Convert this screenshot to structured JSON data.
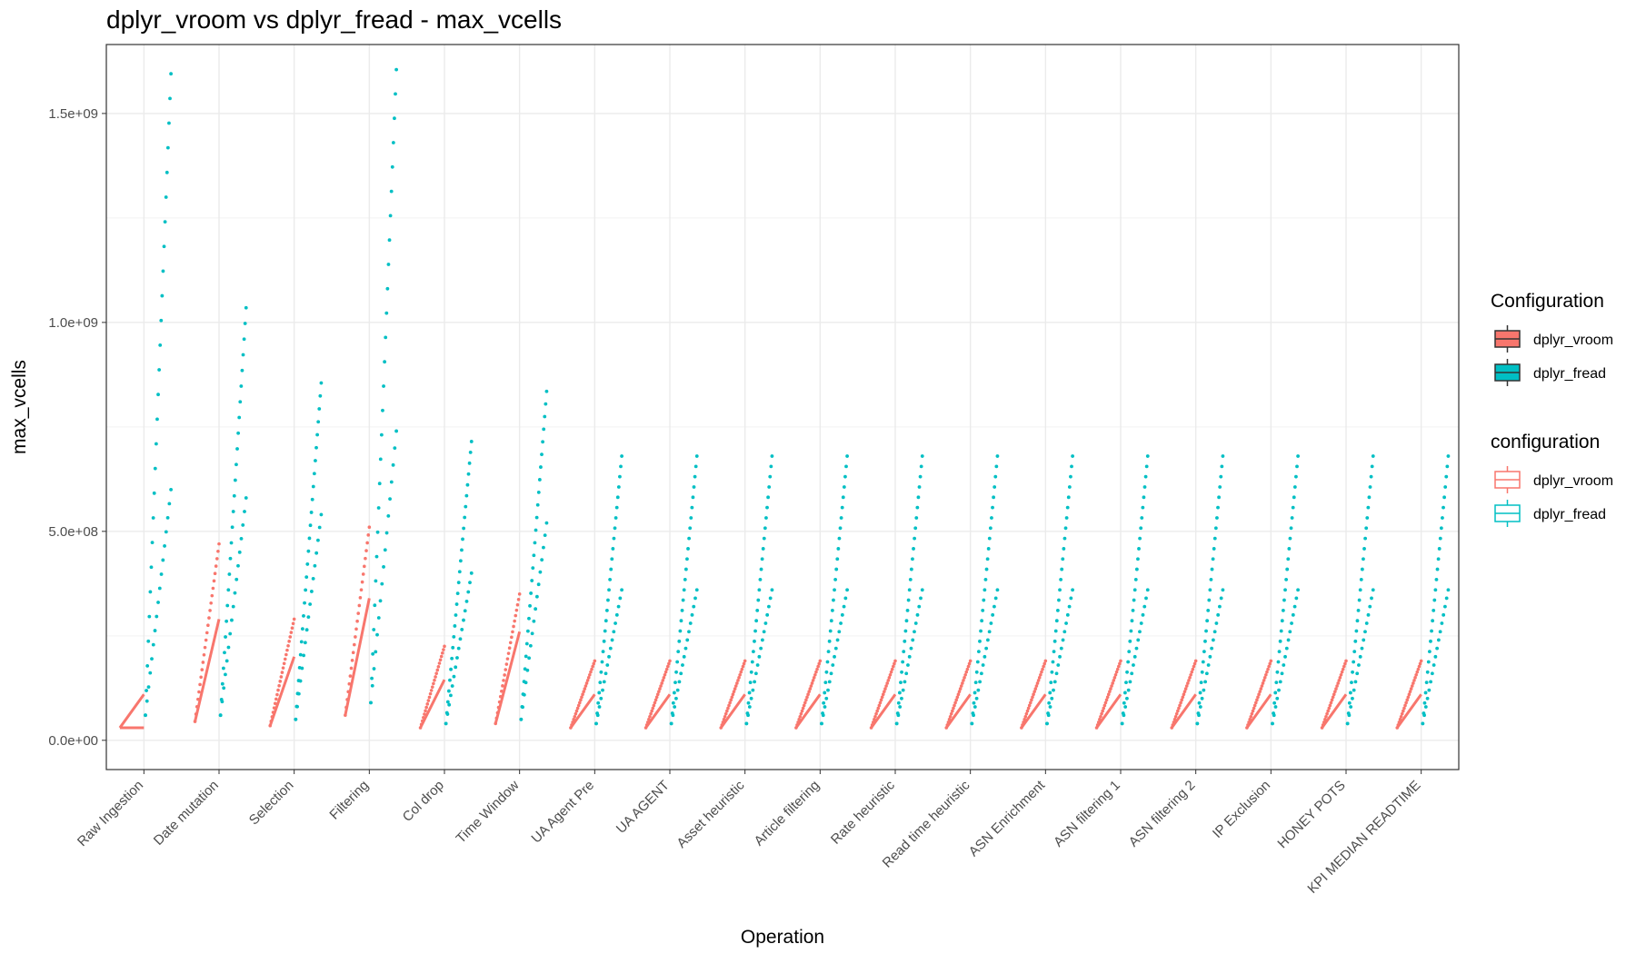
{
  "chart_data": {
    "type": "line",
    "title": "dplyr_vroom vs dplyr_fread - max_vcells",
    "xlabel": "Operation",
    "ylabel": "max_vcells",
    "ylim": [
      -70000000,
      1665000000
    ],
    "yticks": [
      0,
      500000000,
      1000000000,
      1500000000
    ],
    "ytick_labels": [
      "0.0e+00",
      "5.0e+08",
      "1.0e+09",
      "1.5e+09"
    ],
    "grid": true,
    "legend_position": "right",
    "categories": [
      "Raw Ingestion",
      "Date mutation",
      "Selection",
      "Filtering",
      "Col drop",
      "Time Window",
      "UA Agent Pre",
      "UA AGENT",
      "Asset heuristic",
      "Article filtering",
      "Rate heuristic",
      "Read time heuristic",
      "ASN Enrichment",
      "ASN filtering 1",
      "ASN filtering 2",
      "IP Exclusion",
      "HONEY POTS",
      "KPI MEDIAN READTIME"
    ],
    "legends": [
      {
        "title": "Configuration",
        "entries": [
          "dplyr_vroom",
          "dplyr_fread"
        ],
        "style": "filled-box"
      },
      {
        "title": "configuration",
        "entries": [
          "dplyr_vroom",
          "dplyr_fread"
        ],
        "style": "outline-box"
      }
    ],
    "series": [
      {
        "name": "dplyr_vroom",
        "color": "#F8766D",
        "min": [
          30000000,
          45000000,
          35000000,
          60000000,
          30000000,
          40000000,
          30000000,
          30000000,
          30000000,
          30000000,
          30000000,
          30000000,
          30000000,
          30000000,
          30000000,
          30000000,
          30000000,
          30000000
        ],
        "max": [
          110000000,
          470000000,
          290000000,
          510000000,
          225000000,
          350000000,
          190000000,
          190000000,
          190000000,
          190000000,
          190000000,
          190000000,
          190000000,
          190000000,
          190000000,
          190000000,
          190000000,
          190000000
        ],
        "mid": [
          110000000,
          290000000,
          200000000,
          340000000,
          145000000,
          260000000,
          110000000,
          110000000,
          110000000,
          110000000,
          110000000,
          110000000,
          110000000,
          110000000,
          110000000,
          110000000,
          110000000,
          110000000
        ]
      },
      {
        "name": "dplyr_fread",
        "color": "#00BFC4",
        "min": [
          60000000,
          60000000,
          50000000,
          90000000,
          40000000,
          50000000,
          40000000,
          40000000,
          40000000,
          40000000,
          40000000,
          40000000,
          40000000,
          40000000,
          40000000,
          40000000,
          40000000,
          40000000
        ],
        "max": [
          1595000000,
          1035000000,
          855000000,
          1605000000,
          715000000,
          835000000,
          680000000,
          680000000,
          680000000,
          680000000,
          680000000,
          680000000,
          680000000,
          680000000,
          680000000,
          680000000,
          680000000,
          680000000
        ],
        "mid": [
          600000000,
          580000000,
          540000000,
          740000000,
          400000000,
          520000000,
          360000000,
          360000000,
          360000000,
          360000000,
          360000000,
          360000000,
          360000000,
          360000000,
          360000000,
          360000000,
          360000000,
          360000000
        ]
      }
    ]
  }
}
